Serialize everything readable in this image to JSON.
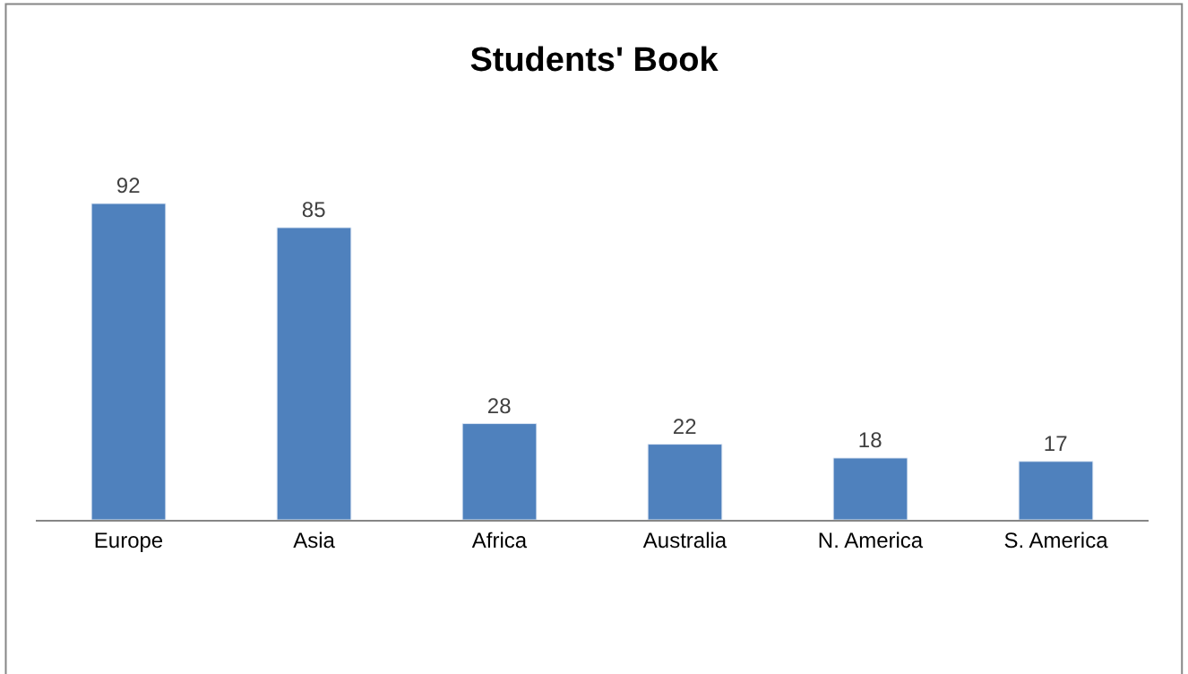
{
  "chart_data": {
    "type": "bar",
    "title": "Students' Book",
    "categories": [
      "Europe",
      "Asia",
      "Africa",
      "Australia",
      "N. America",
      "S. America"
    ],
    "values": [
      92,
      85,
      28,
      22,
      18,
      17
    ],
    "color": "#4f81bd",
    "data_labels": true
  }
}
